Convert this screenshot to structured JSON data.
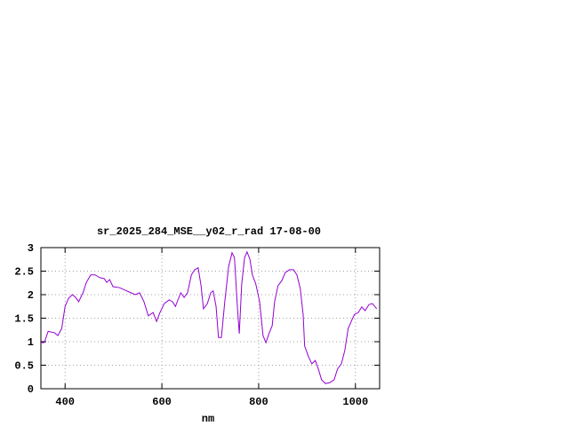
{
  "chart_data": {
    "type": "line",
    "title": "sr_2025_284_MSE__y02_r_rad 17-08-00",
    "x_label": "nm",
    "xlim": [
      350,
      1050
    ],
    "xticks": [
      400,
      600,
      800,
      1000
    ],
    "ylim": [
      0,
      3
    ],
    "yticks": [
      0,
      0.5,
      1,
      1.5,
      2,
      2.5,
      3
    ],
    "grid": true,
    "series": [
      {
        "color": "#9400d3",
        "x": [
          350,
          357,
          365,
          378,
          385,
          393,
          400,
          407,
          415,
          422,
          428,
          437,
          444,
          453,
          462,
          472,
          481,
          486,
          492,
          499,
          512,
          525,
          536,
          545,
          554,
          563,
          572,
          582,
          589,
          596,
          605,
          615,
          622,
          628,
          639,
          646,
          653,
          661,
          668,
          675,
          681,
          686,
          694,
          701,
          706,
          712,
          717,
          723,
          730,
          738,
          745,
          750,
          756,
          760,
          765,
          771,
          776,
          782,
          787,
          794,
          802,
          809,
          815,
          822,
          828,
          833,
          840,
          848,
          855,
          864,
          872,
          879,
          886,
          892,
          895,
          903,
          910,
          917,
          923,
          930,
          938,
          947,
          956,
          963,
          971,
          978,
          985,
          993,
          998,
          1006,
          1013,
          1020,
          1028,
          1035,
          1044
        ],
        "values": [
          0.98,
          0.98,
          1.22,
          1.19,
          1.13,
          1.28,
          1.75,
          1.92,
          2.0,
          1.94,
          1.85,
          2.04,
          2.26,
          2.42,
          2.42,
          2.36,
          2.34,
          2.26,
          2.32,
          2.17,
          2.15,
          2.09,
          2.04,
          2.0,
          2.04,
          1.85,
          1.55,
          1.62,
          1.43,
          1.62,
          1.81,
          1.89,
          1.85,
          1.75,
          2.04,
          1.94,
          2.04,
          2.42,
          2.53,
          2.57,
          2.19,
          1.7,
          1.81,
          2.04,
          2.08,
          1.75,
          1.09,
          1.09,
          1.85,
          2.6,
          2.89,
          2.79,
          1.75,
          1.17,
          2.23,
          2.79,
          2.91,
          2.75,
          2.42,
          2.23,
          1.85,
          1.13,
          0.98,
          1.19,
          1.34,
          1.85,
          2.19,
          2.3,
          2.47,
          2.53,
          2.53,
          2.42,
          2.13,
          1.57,
          0.91,
          0.68,
          0.53,
          0.6,
          0.43,
          0.19,
          0.11,
          0.13,
          0.19,
          0.42,
          0.53,
          0.81,
          1.28,
          1.47,
          1.58,
          1.62,
          1.74,
          1.66,
          1.79,
          1.81,
          1.7
        ]
      }
    ]
  }
}
